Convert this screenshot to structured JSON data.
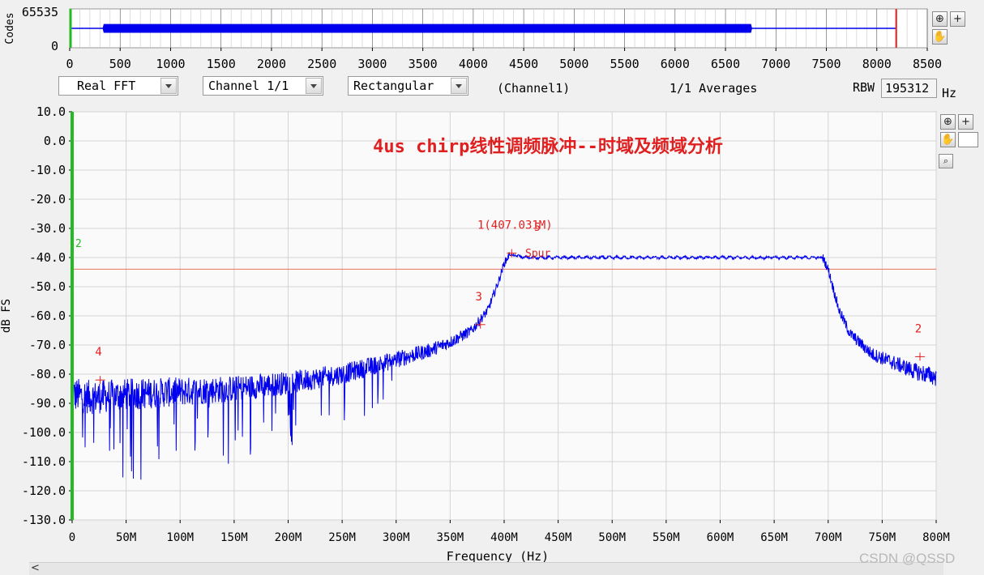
{
  "chart_data": [
    {
      "type": "line",
      "ylabel": "Codes",
      "y_ticks": [
        "65535",
        "0"
      ],
      "x_ticks": [
        0,
        500,
        1000,
        1500,
        2000,
        2500,
        3000,
        3500,
        4000,
        4500,
        5000,
        5500,
        6000,
        6500,
        7000,
        7500,
        8000,
        8500
      ],
      "xlim": [
        0,
        8500
      ],
      "series": [
        {
          "values_description_free": true,
          "x": [
            0,
            330,
            340,
            6750,
            6760,
            8192
          ],
          "y_min": [
            32768,
            32768,
            26000,
            26000,
            32768,
            32768
          ],
          "y_max": [
            32768,
            32768,
            39500,
            39500,
            32768,
            32768
          ]
        }
      ],
      "cursor_x": 8192,
      "color": "#0000ee"
    },
    {
      "type": "line",
      "title": "4us chirp线性调频脉冲--时域及频域分析",
      "xlabel": "Frequency (Hz)",
      "ylabel": "dB FS",
      "x_ticks": [
        "0",
        "50M",
        "100M",
        "150M",
        "200M",
        "250M",
        "300M",
        "350M",
        "400M",
        "450M",
        "500M",
        "550M",
        "600M",
        "650M",
        "700M",
        "750M",
        "800M"
      ],
      "y_ticks": [
        "10.0",
        "0.0",
        "-10.0",
        "-20.0",
        "-30.0",
        "-40.0",
        "-50.0",
        "-60.0",
        "-70.0",
        "-80.0",
        "-90.0",
        "-100.0",
        "-110.0",
        "-120.0",
        "-130.0"
      ],
      "xlim": [
        0,
        800
      ],
      "ylim": [
        -130,
        10
      ],
      "grid": true,
      "series": [
        {
          "x": [
            0,
            20,
            50,
            100,
            150,
            200,
            250,
            300,
            330,
            350,
            370,
            385,
            395,
            400,
            405,
            420,
            450,
            500,
            550,
            600,
            650,
            680,
            690,
            695,
            700,
            710,
            720,
            740,
            760,
            780,
            800
          ],
          "y": [
            -87,
            -88,
            -87,
            -86,
            -85,
            -83,
            -80,
            -75,
            -72,
            -69,
            -65,
            -58,
            -48,
            -42,
            -39,
            -40,
            -40,
            -40,
            -40,
            -40,
            -40,
            -40,
            -40,
            -40,
            -44,
            -58,
            -66,
            -73,
            -76,
            -79,
            -81
          ]
        }
      ],
      "reference_line_y": -44,
      "markers": [
        {
          "label": "1(407.031M)",
          "x": 407,
          "y": -38.5
        },
        {
          "label": "2",
          "x": 785,
          "y": -74
        },
        {
          "label": "3",
          "x": 378,
          "y": -63
        },
        {
          "label": "4",
          "x": 26,
          "y": -82
        }
      ],
      "spur_label": "Spur",
      "marker5_label": "5",
      "left_cursor_label": "2",
      "color": "#0000ee"
    }
  ],
  "controls": {
    "fft_type": "Real FFT",
    "channel": "Channel 1/1",
    "window": "Rectangular",
    "channel_name": "(Channel1)",
    "averages": "1/1 Averages",
    "rbw_label": "RBW",
    "rbw_value": "195312",
    "rbw_unit": "Hz"
  },
  "watermark": "CSDN @QSSD",
  "icons": [
    "zoom-icon",
    "plus-icon",
    "hand-icon",
    "magnifier-icon"
  ]
}
